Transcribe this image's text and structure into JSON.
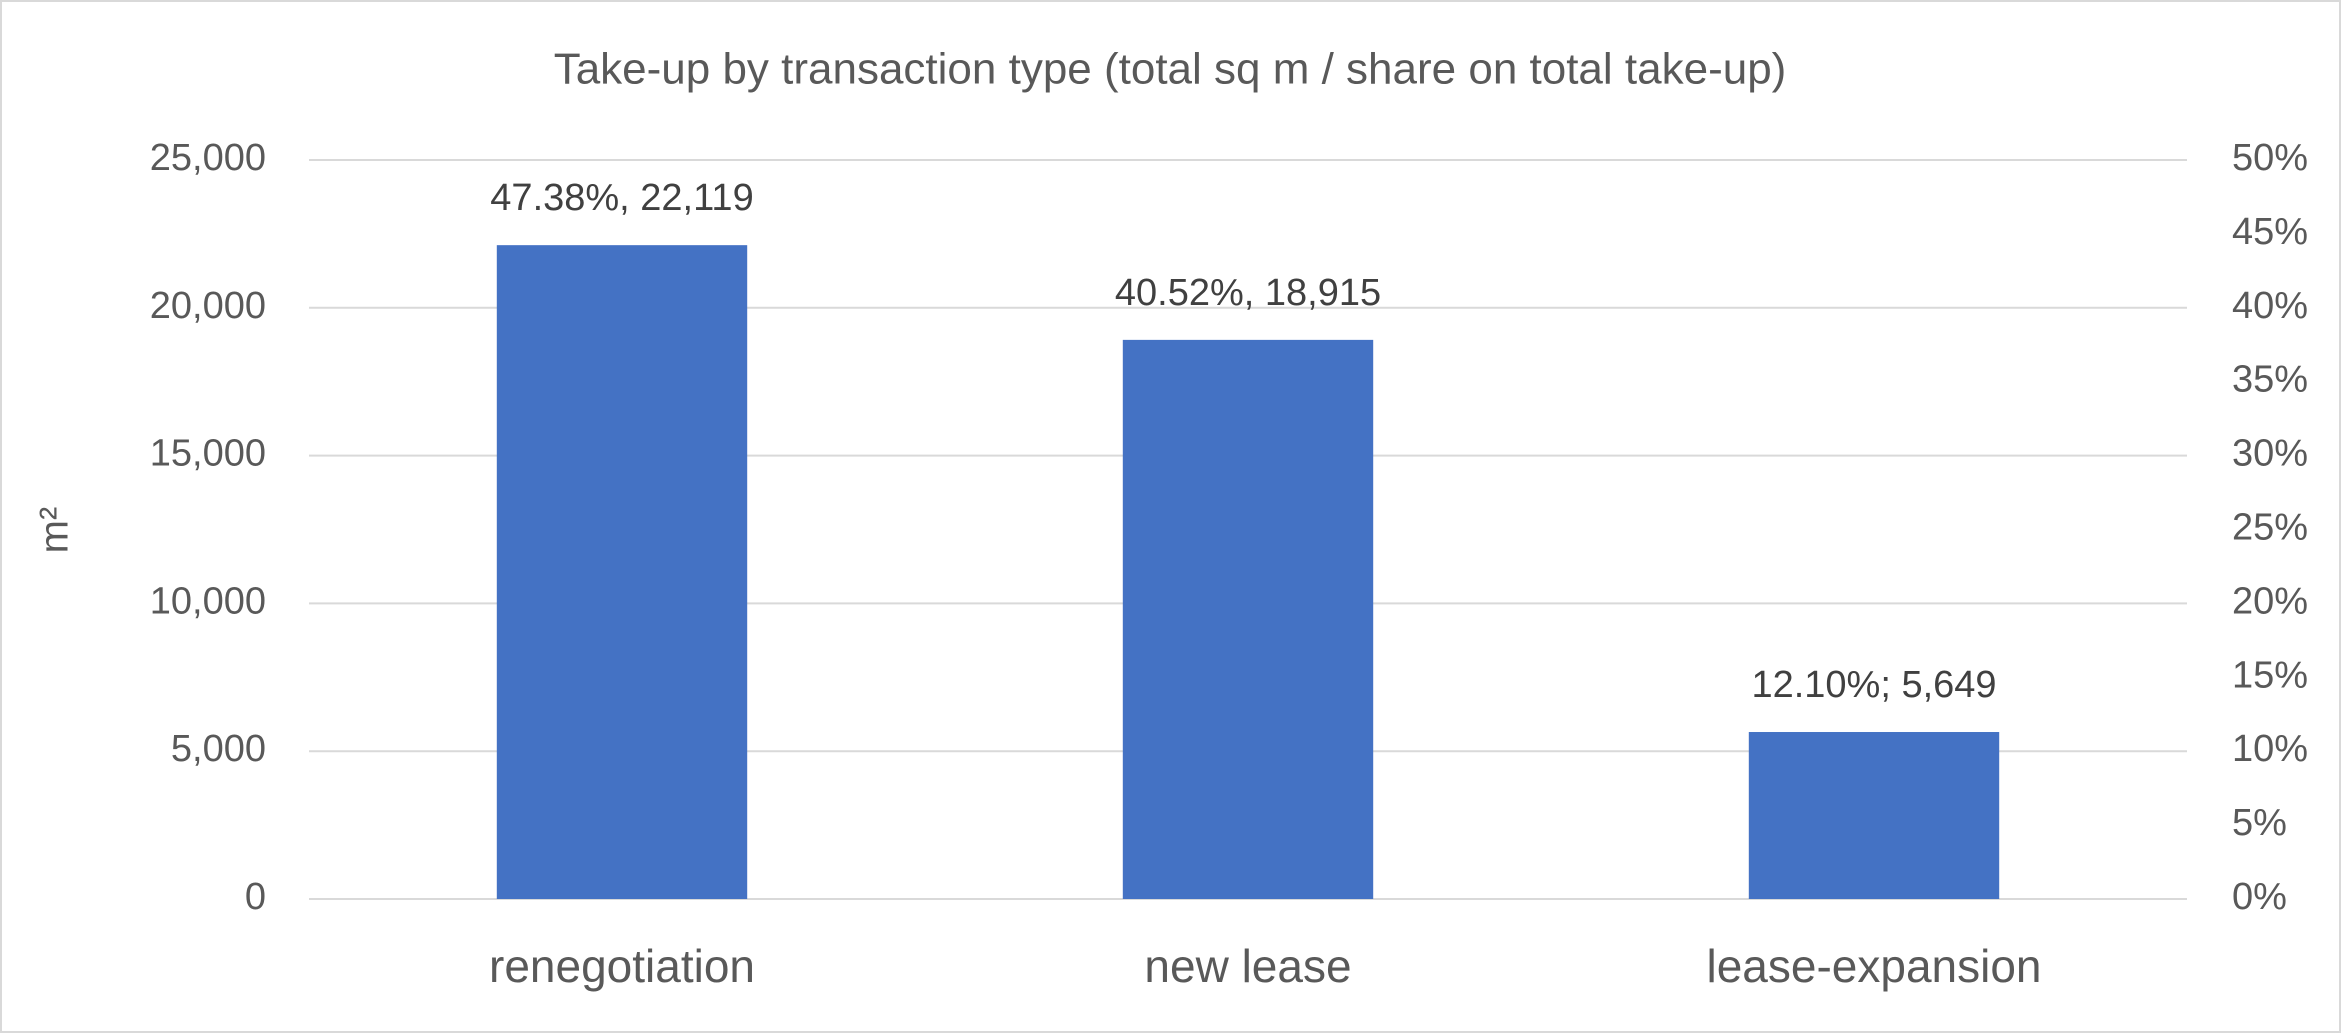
{
  "chart_data": {
    "type": "bar",
    "title": "Take-up by transaction type (total sq m / share on total take-up)",
    "y_label": "m²",
    "categories": [
      "renegotiation",
      "new lease",
      "lease-expansion"
    ],
    "values": [
      22119,
      18915,
      5649
    ],
    "value_labels": [
      "47.38%, 22,119",
      "40.52%, 18,915",
      "12.10%; 5,649"
    ],
    "color": "#4472c4",
    "ylim": [
      0,
      25000
    ],
    "yticks": [
      0,
      {
        "value": 5000,
        "label": "5,000"
      },
      {
        "value": 10000,
        "label": "10,000"
      },
      {
        "value": 15000,
        "label": "15,000"
      },
      {
        "value": 20000,
        "label": "20,000"
      },
      {
        "value": 25000,
        "label": "25,000"
      }
    ],
    "y2lim": [
      0,
      50
    ],
    "y2ticks": [
      {
        "value": 0,
        "label": "0%"
      },
      {
        "value": 5,
        "label": "5%"
      },
      {
        "value": 10,
        "label": "10%"
      },
      {
        "value": 15,
        "label": "15%"
      },
      {
        "value": 20,
        "label": "20%"
      },
      {
        "value": 25,
        "label": "25%"
      },
      {
        "value": 30,
        "label": "30%"
      },
      {
        "value": 35,
        "label": "35%"
      },
      {
        "value": 40,
        "label": "40%"
      },
      {
        "value": 45,
        "label": "45%"
      },
      {
        "value": 50,
        "label": "50%"
      }
    ],
    "grid": true
  }
}
